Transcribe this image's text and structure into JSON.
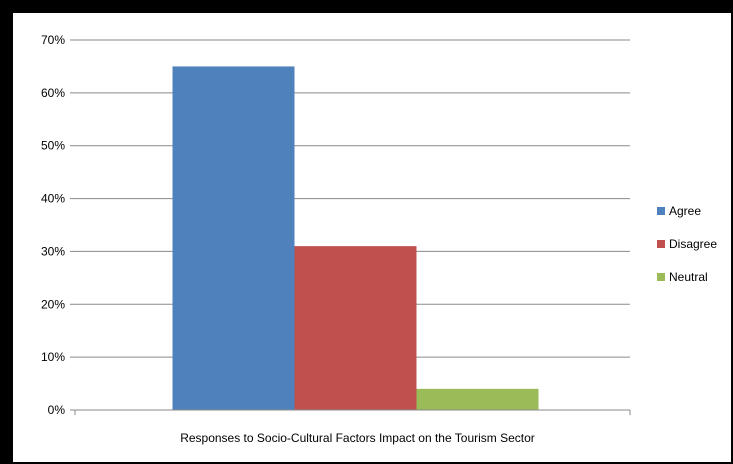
{
  "chart_data": {
    "type": "bar",
    "title": "",
    "xlabel": "Responses to Socio-Cultural Factors Impact on the Tourism  Sector",
    "ylabel": "",
    "ylim": [
      0,
      0.7
    ],
    "y_ticks": [
      "0%",
      "10%",
      "20%",
      "30%",
      "40%",
      "50%",
      "60%",
      "70%"
    ],
    "grid": true,
    "legend_position": "right",
    "series": [
      {
        "name": "Agree",
        "values": [
          0.65
        ],
        "color": "#4F81BD"
      },
      {
        "name": "Disagree",
        "values": [
          0.31
        ],
        "color": "#C0504D"
      },
      {
        "name": "Neutral",
        "values": [
          0.04
        ],
        "color": "#9BBB59"
      }
    ]
  }
}
